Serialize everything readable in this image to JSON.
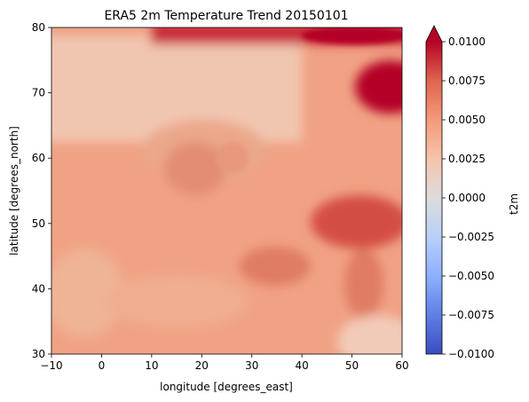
{
  "chart_data": {
    "type": "heatmap",
    "title": "ERA5 2m Temperature Trend 20150101",
    "xlabel": "longitude [degrees_east]",
    "ylabel": "latitude [degrees_north]",
    "xlim": [
      -10,
      60
    ],
    "ylim": [
      30,
      80
    ],
    "xticks": [
      -10,
      0,
      10,
      20,
      30,
      40,
      50,
      60
    ],
    "yticks": [
      30,
      40,
      50,
      60,
      70,
      80
    ],
    "grid": false,
    "colormap": "coolwarm",
    "colorbar": {
      "label": "t2m",
      "vmin": -0.01,
      "vmax": 0.01,
      "extend": "max",
      "ticks": [
        -0.01,
        -0.0075,
        -0.005,
        -0.0025,
        0.0,
        0.0025,
        0.005,
        0.0075,
        0.01
      ],
      "tick_labels": [
        "−0.0100",
        "−0.0075",
        "−0.0050",
        "−0.0025",
        "0.0000",
        "0.0025",
        "0.0050",
        "0.0075",
        "0.0100"
      ]
    },
    "approx_regions": [
      {
        "lon": [
          25,
          60
        ],
        "lat": [
          76,
          80
        ],
        "value": 0.0095
      },
      {
        "lon": [
          49,
          60
        ],
        "lat": [
          67,
          74
        ],
        "value": 0.0098
      },
      {
        "lon": [
          -10,
          30
        ],
        "lat": [
          63,
          78
        ],
        "value": 0.0028
      },
      {
        "lon": [
          35,
          60
        ],
        "lat": [
          46,
          53
        ],
        "value": 0.0068
      },
      {
        "lon": [
          27,
          42
        ],
        "lat": [
          41,
          47
        ],
        "value": 0.006
      },
      {
        "lon": [
          46,
          55
        ],
        "lat": [
          37,
          47
        ],
        "value": 0.0055
      },
      {
        "lon": [
          35,
          60
        ],
        "lat": [
          30,
          40
        ],
        "value": 0.0022
      }
    ]
  }
}
